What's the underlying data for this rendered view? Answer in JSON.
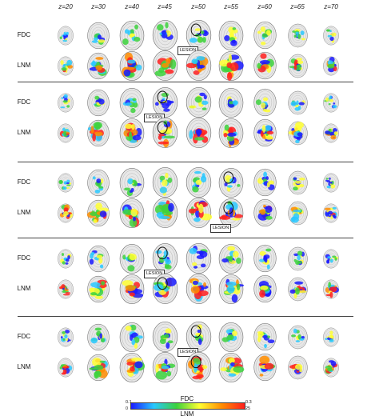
{
  "z_labels": [
    "z=20",
    "z=30",
    "z=40",
    "z=45",
    "z=50",
    "z=55",
    "z=60",
    "z=65",
    "z=70"
  ],
  "row_labels": {
    "fdc": "FDC",
    "lnm": "LNM"
  },
  "lesion_label": "LESION",
  "colorbar": {
    "fdc_title": "FDC",
    "lnm_title": "LNM",
    "fdc_min": "0.1",
    "fdc_max": "0.3",
    "lnm_min": "0",
    "lnm_max": "25",
    "colors": [
      "#1a1aff",
      "#28c8ff",
      "#3cd23c",
      "#ffff32",
      "#ff8c00",
      "#ff1e1e"
    ]
  },
  "panels": [
    {
      "fdc_lesion_slice": 4,
      "lnm_lesion_slice": -1,
      "lesion_row": "fdc"
    },
    {
      "fdc_lesion_slice": 3,
      "lnm_lesion_slice": 3,
      "lesion_row": "fdc"
    },
    {
      "fdc_lesion_slice": 5,
      "lnm_lesion_slice": 5,
      "lesion_row": "lnm"
    },
    {
      "fdc_lesion_slice": 3,
      "lnm_lesion_slice": 3,
      "lesion_row": "fdc"
    },
    {
      "fdc_lesion_slice": 4,
      "lnm_lesion_slice": 4,
      "lesion_row": "fdc"
    }
  ]
}
